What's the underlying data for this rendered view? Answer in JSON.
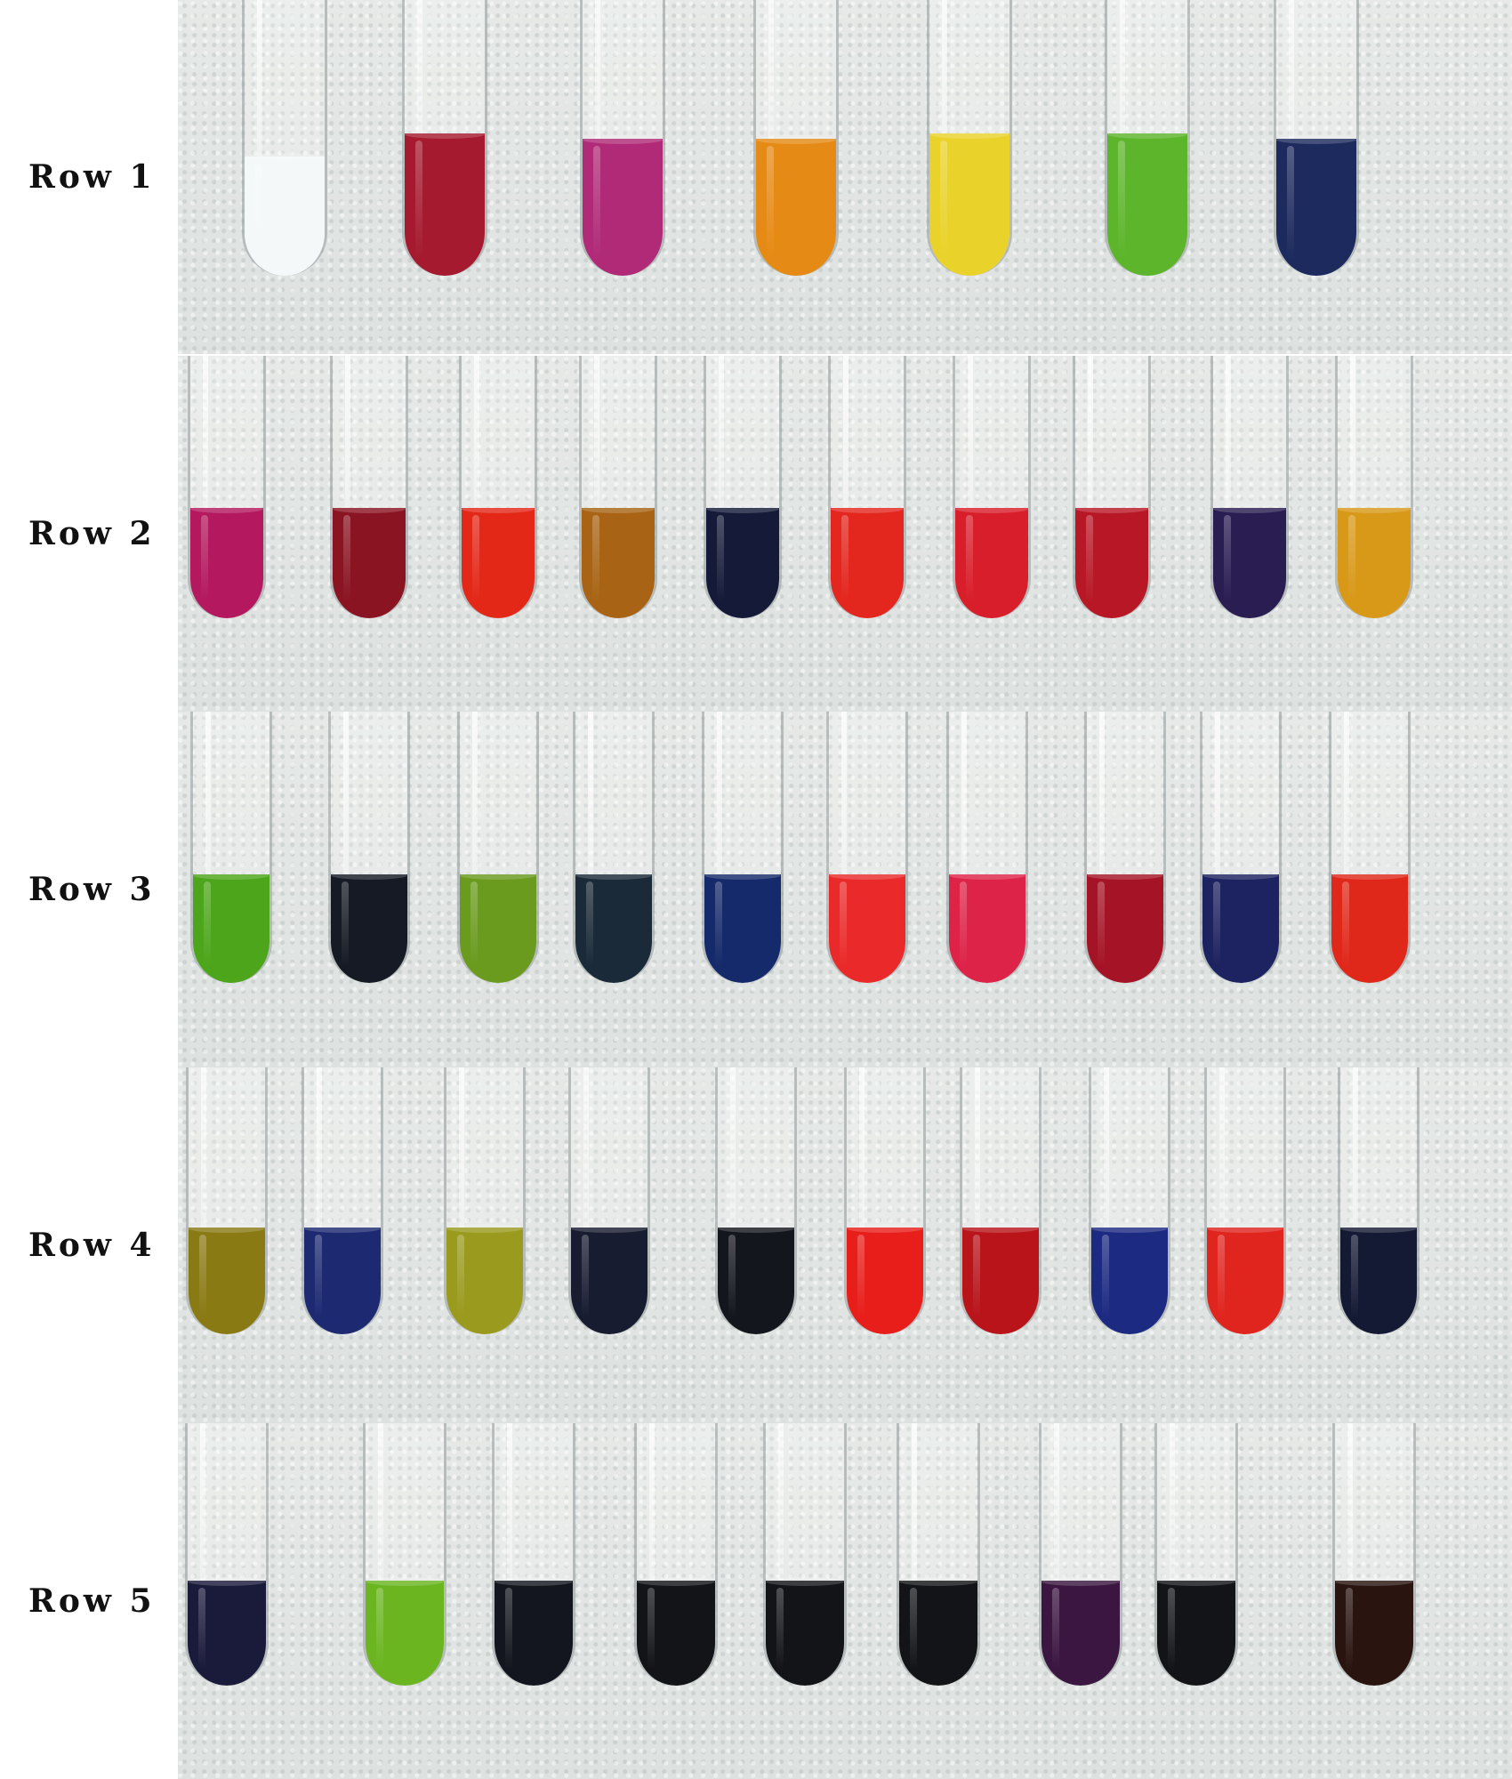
{
  "rows": [
    {
      "label": "Row 1",
      "tubes": [
        {
          "color": "#f4f8f8",
          "fill": 0.42
        },
        {
          "color": "#a51a2e",
          "fill": 0.5
        },
        {
          "color": "#b02a78",
          "fill": 0.48
        },
        {
          "color": "#e58a14",
          "fill": 0.48
        },
        {
          "color": "#e9d22a",
          "fill": 0.5
        },
        {
          "color": "#5cb52a",
          "fill": 0.5
        },
        {
          "color": "#1d2a5e",
          "fill": 0.48
        }
      ]
    },
    {
      "label": "Row 2",
      "tubes": [
        {
          "color": "#b4185e",
          "fill": 0.42
        },
        {
          "color": "#8a1422",
          "fill": 0.42
        },
        {
          "color": "#e32818",
          "fill": 0.42
        },
        {
          "color": "#a86414",
          "fill": 0.42
        },
        {
          "color": "#151a38",
          "fill": 0.42
        },
        {
          "color": "#e3261e",
          "fill": 0.42
        },
        {
          "color": "#d81e2a",
          "fill": 0.42
        },
        {
          "color": "#b81826",
          "fill": 0.42
        },
        {
          "color": "#2a1d52",
          "fill": 0.42
        },
        {
          "color": "#d89818",
          "fill": 0.42
        }
      ]
    },
    {
      "label": "Row 3",
      "tubes": [
        {
          "color": "#4ca51a",
          "fill": 0.4
        },
        {
          "color": "#151a24",
          "fill": 0.4
        },
        {
          "color": "#6a9a1e",
          "fill": 0.4
        },
        {
          "color": "#1a2a38",
          "fill": 0.4
        },
        {
          "color": "#152a6a",
          "fill": 0.4
        },
        {
          "color": "#ea2a2a",
          "fill": 0.4
        },
        {
          "color": "#dd2448",
          "fill": 0.4
        },
        {
          "color": "#a51426",
          "fill": 0.4
        },
        {
          "color": "#1d2260",
          "fill": 0.4
        },
        {
          "color": "#e0281a",
          "fill": 0.4
        }
      ]
    },
    {
      "label": "Row 4",
      "tubes": [
        {
          "color": "#8a7a14",
          "fill": 0.4
        },
        {
          "color": "#1d2a72",
          "fill": 0.4
        },
        {
          "color": "#9a9a1e",
          "fill": 0.4
        },
        {
          "color": "#181c30",
          "fill": 0.4
        },
        {
          "color": "#14161e",
          "fill": 0.4
        },
        {
          "color": "#e81e1a",
          "fill": 0.4
        },
        {
          "color": "#b8141a",
          "fill": 0.4
        },
        {
          "color": "#1d2a82",
          "fill": 0.4
        },
        {
          "color": "#e0241e",
          "fill": 0.4
        },
        {
          "color": "#151a34",
          "fill": 0.4
        }
      ]
    },
    {
      "label": "Row 5",
      "tubes": [
        {
          "color": "#1a1a3a",
          "fill": 0.4
        },
        {
          "color": "#6ab520",
          "fill": 0.4
        },
        {
          "color": "#14161f",
          "fill": 0.4
        },
        {
          "color": "#121418",
          "fill": 0.4
        },
        {
          "color": "#121418",
          "fill": 0.4
        },
        {
          "color": "#121417",
          "fill": 0.4
        },
        {
          "color": "#3a1640",
          "fill": 0.4
        },
        {
          "color": "#121418",
          "fill": 0.4
        },
        {
          "color": "#2a1410",
          "fill": 0.4
        }
      ]
    }
  ]
}
